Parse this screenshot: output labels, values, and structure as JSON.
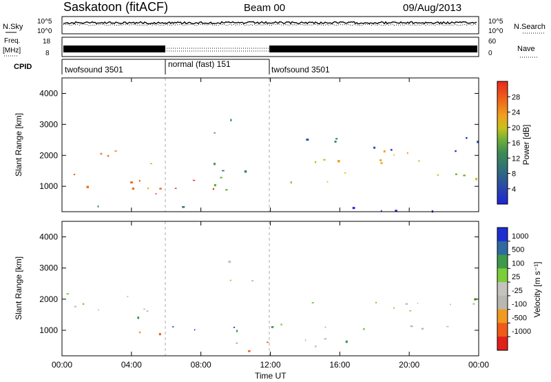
{
  "header": {
    "station": "Saskatoon (fitACF)",
    "beam": "Beam 00",
    "date": "09/Aug/2013"
  },
  "noise_panel": {
    "left_label": "N.Sky",
    "right_label": "N.Search",
    "left_ticks": [
      "10^5",
      "10^0"
    ],
    "right_ticks": [
      "10^5",
      "10^0"
    ]
  },
  "freq_panel": {
    "left_label_line1": "Freq.",
    "left_label_line2": "[MHz]",
    "left_ticks": [
      "18",
      "8"
    ],
    "right_label": "Nave",
    "right_ticks": [
      "60",
      "0"
    ]
  },
  "cpid_panel": {
    "label": "CPID",
    "segments": [
      {
        "name": "twofsound 3501",
        "start": 0,
        "end": 6
      },
      {
        "name": "normal (fast) 151",
        "start": 6,
        "end": 12
      },
      {
        "name": "twofsound 3501",
        "start": 12,
        "end": 24
      }
    ]
  },
  "colors": {
    "power": [
      "#1e24d6",
      "#2a4aa6",
      "#2f6f7a",
      "#3e8a55",
      "#6cae3a",
      "#c7c21a",
      "#f0a020",
      "#f06a18",
      "#e8281c"
    ],
    "velocity": [
      "#e0201c",
      "#f05a18",
      "#f09a20",
      "#b8b8b0",
      "#c4c4bc",
      "#7ccd3a",
      "#3e9a4a",
      "#2f6aa0",
      "#1e2ed0"
    ]
  },
  "chart_data": [
    {
      "type": "heatmap",
      "title": "Power",
      "xlabel": "Time UT",
      "ylabel": "Slant Range [km]",
      "x_ticks": [
        "00:00",
        "04:00",
        "08:00",
        "12:00",
        "16:00",
        "20:00",
        "00:00"
      ],
      "xlim": [
        0,
        24
      ],
      "ylim": [
        180,
        4500
      ],
      "y_ticks": [
        "1000",
        "2000",
        "3000",
        "4000"
      ],
      "colorbar_label": "Power [dB]",
      "colorbar_ticks": [
        "4",
        "8",
        "12",
        "16",
        "20",
        "24",
        "28"
      ],
      "regions": [
        {
          "t": [
            0,
            6
          ],
          "r": [
            700,
            2200
          ],
          "level": 0.75
        },
        {
          "t": [
            3.5,
            11
          ],
          "r": [
            700,
            1300
          ],
          "level": 0.95
        },
        {
          "t": [
            6,
            11.6
          ],
          "r": [
            900,
            1800
          ],
          "level": 0.45
        },
        {
          "t": [
            9.2,
            11.2
          ],
          "r": [
            2900,
            3500
          ],
          "level": 0.3
        },
        {
          "t": [
            8.2,
            10.5
          ],
          "r": [
            2500,
            2800
          ],
          "level": 0.4
        },
        {
          "t": [
            12,
            24
          ],
          "r": [
            1000,
            2200
          ],
          "level": 0.65
        },
        {
          "t": [
            12,
            24
          ],
          "r": [
            2000,
            2600
          ],
          "level": 0.2
        },
        {
          "t": [
            0,
            24
          ],
          "r": [
            180,
            400
          ],
          "level": 0.15
        }
      ]
    },
    {
      "type": "heatmap",
      "title": "Velocity",
      "xlabel": "Time UT",
      "ylabel": "Slant Range [km]",
      "x_ticks": [
        "00:00",
        "04:00",
        "08:00",
        "12:00",
        "16:00",
        "20:00",
        "00:00"
      ],
      "xlim": [
        0,
        24
      ],
      "ylim": [
        180,
        4500
      ],
      "y_ticks": [
        "1000",
        "2000",
        "3000",
        "4000"
      ],
      "colorbar_label": "Velocity [m s⁻¹]",
      "colorbar_ticks": [
        "1000",
        "500",
        "100",
        "25",
        "-25",
        "-100",
        "-500",
        "-1000"
      ],
      "regions": [
        {
          "t": [
            0,
            6
          ],
          "r": [
            1200,
            2200
          ],
          "level": 0.5
        },
        {
          "t": [
            12,
            24
          ],
          "r": [
            1000,
            2300
          ],
          "level": 0.5
        },
        {
          "t": [
            4,
            11.5
          ],
          "r": [
            900,
            1500
          ],
          "level": 0.82
        },
        {
          "t": [
            3,
            7
          ],
          "r": [
            700,
            1100
          ],
          "level": 0.28
        },
        {
          "t": [
            8,
            13
          ],
          "r": [
            200,
            700
          ],
          "level": 0.18
        },
        {
          "t": [
            8.5,
            11
          ],
          "r": [
            2500,
            3400
          ],
          "level": 0.5
        },
        {
          "t": [
            13,
            20
          ],
          "r": [
            300,
            800
          ],
          "level": 0.62
        }
      ]
    }
  ]
}
